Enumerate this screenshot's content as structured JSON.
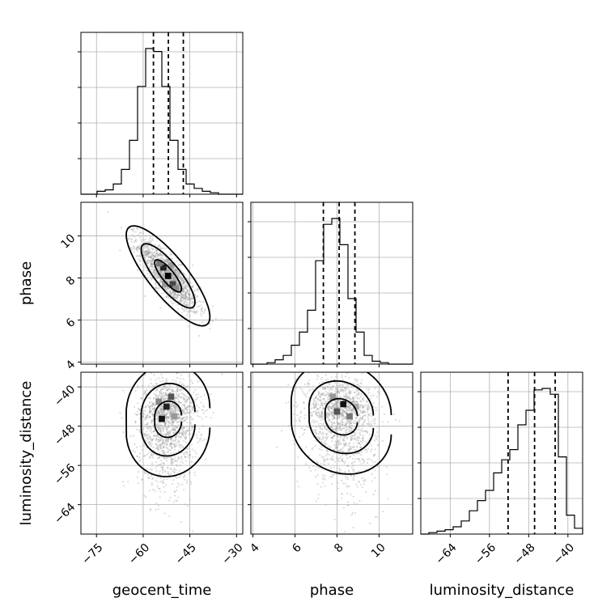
{
  "chart_data": {
    "type": "corner",
    "parameters": [
      "geocent_time",
      "phase",
      "luminosity_distance"
    ],
    "colors": {
      "line": "#000000",
      "points": "#9a9a9a",
      "grid": "#b0b0b0",
      "background": "#ffffff"
    },
    "grid": true,
    "ranges": {
      "geocent_time": [
        -80,
        -28
      ],
      "phase": [
        3.9,
        11.6
      ],
      "luminosity_distance": [
        -70,
        -37
      ]
    },
    "ticks": {
      "geocent_time": [
        -75,
        -60,
        -45,
        -30
      ],
      "phase_y": [
        4,
        6,
        8,
        10
      ],
      "phase_x": [
        4,
        6,
        8,
        10
      ],
      "luminosity_distance_y": [
        -40,
        -48,
        -56,
        -64
      ],
      "luminosity_distance_x": [
        -64,
        -56,
        -48,
        -40
      ]
    },
    "tick_labels": {
      "geocent_time": [
        "−75",
        "−60",
        "−45",
        "−30"
      ],
      "phase_y": [
        "4",
        "6",
        "8",
        "10"
      ],
      "phase_x": [
        "4",
        "6",
        "8",
        "10"
      ],
      "luminosity_distance_y": [
        "−40",
        "−48",
        "−56",
        "−64"
      ],
      "luminosity_distance_x": [
        "−64",
        "−56",
        "−48",
        "−40"
      ]
    },
    "histograms": [
      {
        "parameter": "geocent_time",
        "bin_edges": [
          -80,
          -77.4,
          -74.8,
          -72.2,
          -69.6,
          -67,
          -64.4,
          -61.8,
          -59.2,
          -56.6,
          -54,
          -51.4,
          -48.8,
          -46.2,
          -43.6,
          -41,
          -38.4,
          -35.8,
          -33.2,
          -30.6,
          -28
        ],
        "counts": [
          0,
          0,
          0.02,
          0.03,
          0.07,
          0.17,
          0.37,
          0.74,
          1.0,
          0.98,
          0.74,
          0.37,
          0.17,
          0.07,
          0.04,
          0.02,
          0.01,
          0,
          0,
          0
        ],
        "quantiles": [
          -56.7,
          -51.9,
          -47.1
        ]
      },
      {
        "parameter": "phase",
        "bin_edges": [
          3.9,
          4.285,
          4.67,
          5.055,
          5.44,
          5.825,
          6.21,
          6.595,
          6.98,
          7.365,
          7.75,
          8.135,
          8.52,
          8.905,
          9.29,
          9.675,
          10.06,
          10.445,
          10.83,
          11.215,
          11.6
        ],
        "counts": [
          0,
          0,
          0.01,
          0.03,
          0.06,
          0.13,
          0.22,
          0.37,
          0.71,
          0.96,
          1.0,
          0.82,
          0.45,
          0.22,
          0.06,
          0.02,
          0.01,
          0,
          0,
          0
        ],
        "quantiles": [
          7.35,
          8.1,
          8.85
        ]
      },
      {
        "parameter": "luminosity_distance",
        "bin_edges": [
          -70,
          -68.35,
          -66.7,
          -65.05,
          -63.4,
          -61.75,
          -60.1,
          -58.45,
          -56.8,
          -55.15,
          -53.5,
          -51.85,
          -50.2,
          -48.55,
          -46.9,
          -45.25,
          -43.6,
          -41.95,
          -40.3,
          -38.65,
          -37
        ],
        "counts": [
          0,
          0.01,
          0.02,
          0.03,
          0.05,
          0.09,
          0.16,
          0.23,
          0.3,
          0.42,
          0.51,
          0.58,
          0.75,
          0.85,
          0.99,
          1.0,
          0.96,
          0.53,
          0.13,
          0.04
        ],
        "quantiles": [
          -52.2,
          -46.8,
          -42.6
        ]
      }
    ],
    "scatter_2d": [
      {
        "x": "geocent_time",
        "y": "phase",
        "center": [
          -52,
          8.1
        ],
        "correlation": "negative"
      },
      {
        "x": "geocent_time",
        "y": "luminosity_distance",
        "center": [
          -52,
          -45.5
        ],
        "correlation": "none"
      },
      {
        "x": "phase",
        "y": "luminosity_distance",
        "center": [
          8.2,
          -45
        ],
        "correlation": "slight-negative"
      }
    ]
  }
}
